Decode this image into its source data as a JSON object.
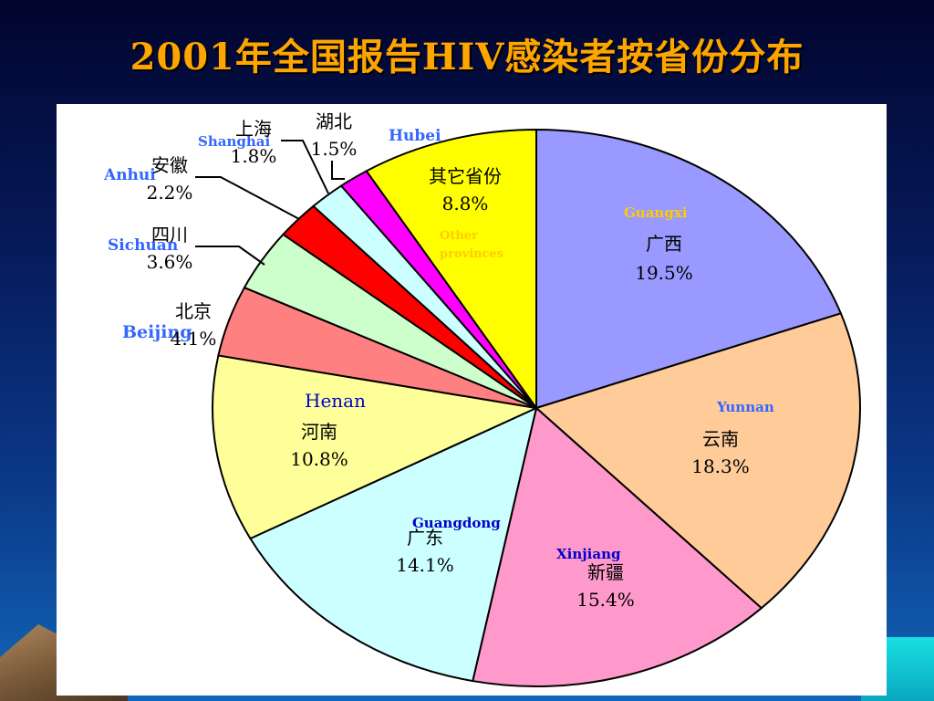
{
  "title": "2001年全国报告HIV感染者按省份分布",
  "chart_data": {
    "type": "pie",
    "slices": [
      {
        "cn": "广西",
        "en": "Guangxi",
        "pct_label": "19.5%",
        "value": 19.5,
        "color": "#9999ff",
        "en_color": "#ffcc00"
      },
      {
        "cn": "云南",
        "en": "Yunnan",
        "pct_label": "18.3%",
        "value": 18.3,
        "color": "#ffcc99",
        "en_color": "#3366ff"
      },
      {
        "cn": "新疆",
        "en": "Xinjiang",
        "pct_label": "15.4%",
        "value": 15.4,
        "color": "#ff99cc",
        "en_color": "#0000cc"
      },
      {
        "cn": "广东",
        "en": "Guangdong",
        "pct_label": "14.1%",
        "value": 14.1,
        "color": "#ccffff",
        "en_color": "#0000cc"
      },
      {
        "cn": "河南",
        "en": "Henan",
        "pct_label": "10.8%",
        "value": 10.8,
        "color": "#ffff99",
        "en_color": "#0000cc"
      },
      {
        "cn": "北京",
        "en": "Beijing",
        "pct_label": "4.1%",
        "value": 4.1,
        "color": "#ff8080",
        "en_color": "#3366ff"
      },
      {
        "cn": "四川",
        "en": "Sichuan",
        "pct_label": "3.6%",
        "value": 3.6,
        "color": "#ccffcc",
        "en_color": "#3366ff"
      },
      {
        "cn": "安徽",
        "en": "Anhui",
        "pct_label": "2.2%",
        "value": 2.2,
        "color": "#ff0000",
        "en_color": "#3366ff"
      },
      {
        "cn": "上海",
        "en": "Shanghai",
        "pct_label": "1.8%",
        "value": 1.8,
        "color": "#ccffff",
        "en_color": "#3366ff"
      },
      {
        "cn": "湖北",
        "en": "Hubei",
        "pct_label": "1.5%",
        "value": 1.5,
        "color": "#ff00ff",
        "en_color": "#3366ff"
      },
      {
        "cn": "其它省份",
        "en": "Other provinces",
        "pct_label": "8.8%",
        "value": 8.8,
        "color": "#ffff00",
        "en_color": "#ffcc00"
      }
    ]
  }
}
